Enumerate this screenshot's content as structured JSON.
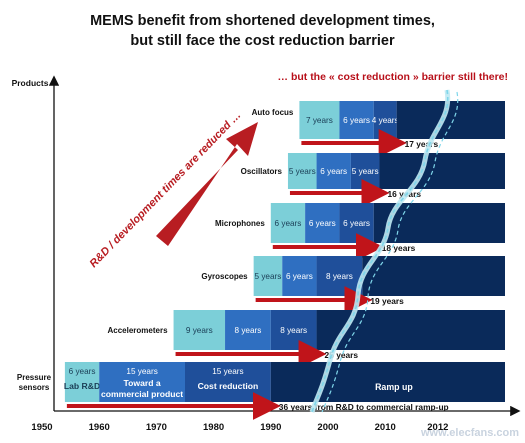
{
  "title_line1": "MEMS benefit from shortened development times,",
  "title_line2": "but still face the cost reduction barrier",
  "annotation_top": "… but the « cost reduction » barrier still there!",
  "annotation_diag": "R&D / development times are reduced …",
  "watermark": "www.elecfans.com",
  "colors": {
    "phase1": "#7ccfd8",
    "phase2": "#2f6fc1",
    "phase3": "#1f4f9a",
    "ramp": "#0a2a5a",
    "arrow_red": "#c0141a",
    "diag_arrow": "#b81d22"
  },
  "chart_data": {
    "type": "timeline",
    "yaxis_label": "Products",
    "xaxis_ticks": [
      "1950",
      "1960",
      "1970",
      "1980",
      "1990",
      "2000",
      "2010",
      "2012"
    ],
    "rows": [
      {
        "label": "Auto focus",
        "start": 1995,
        "phases": [
          {
            "label": "7 years",
            "years": 7
          },
          {
            "label": "6 years",
            "years": 6
          },
          {
            "label": "4 years",
            "years": 4
          }
        ],
        "total_label": "17 years"
      },
      {
        "label": "Oscillators",
        "start": 1993,
        "phases": [
          {
            "label": "5 years",
            "years": 5
          },
          {
            "label": "6 years",
            "years": 6
          },
          {
            "label": "5 years",
            "years": 5
          }
        ],
        "total_label": "16 years"
      },
      {
        "label": "Microphones",
        "start": 1990,
        "phases": [
          {
            "label": "6 years",
            "years": 6
          },
          {
            "label": "6 years",
            "years": 6
          },
          {
            "label": "6 years",
            "years": 6
          }
        ],
        "total_label": "18 years"
      },
      {
        "label": "Gyroscopes",
        "start": 1987,
        "phases": [
          {
            "label": "5 years",
            "years": 5
          },
          {
            "label": "6 years",
            "years": 6
          },
          {
            "label": "8 years",
            "years": 8
          }
        ],
        "total_label": "19 years"
      },
      {
        "label": "Accelerometers",
        "start": 1973,
        "phases": [
          {
            "label": "9 years",
            "years": 9
          },
          {
            "label": "8 years",
            "years": 8
          },
          {
            "label": "8 years",
            "years": 8
          }
        ],
        "total_label": "25 years"
      },
      {
        "label": "Pressure sensors",
        "start": 1954,
        "phases": [
          {
            "label": "6 years",
            "label2": "Lab R&D",
            "years": 6
          },
          {
            "label": "15 years",
            "label2": "Toward a commercial product",
            "years": 15
          },
          {
            "label": "15 years",
            "label2": "Cost reduction",
            "years": 15
          }
        ],
        "ramp_label": "Ramp up",
        "total_label": "36 years from R&D to commercial ramp-up"
      }
    ]
  }
}
